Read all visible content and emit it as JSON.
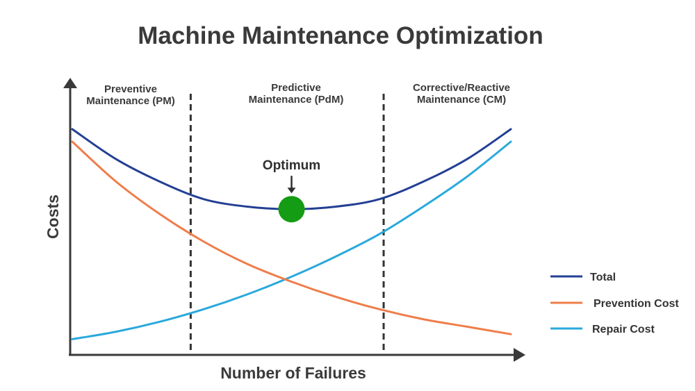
{
  "chart_data": {
    "type": "line",
    "title": "Machine Maintenance Optimization",
    "xlabel": "Number of Failures",
    "ylabel": "Costs",
    "xlim": [
      0,
      10
    ],
    "ylim": [
      0,
      10
    ],
    "grid": false,
    "legend_position": "right",
    "x": [
      0,
      1,
      2,
      3,
      4,
      5,
      6,
      7,
      8,
      9,
      10
    ],
    "series": [
      {
        "name": "Total",
        "color": "#233f94",
        "values": [
          9.0,
          7.8,
          6.9,
          6.2,
          5.9,
          5.8,
          5.9,
          6.2,
          6.9,
          7.8,
          9.0
        ]
      },
      {
        "name": "Prevention Cost",
        "color": "#ef7d4a",
        "values": [
          8.5,
          6.9,
          5.6,
          4.5,
          3.6,
          2.9,
          2.3,
          1.8,
          1.4,
          1.1,
          0.8
        ]
      },
      {
        "name": "Repair Cost",
        "color": "#29a9dc",
        "values": [
          0.6,
          0.9,
          1.3,
          1.8,
          2.4,
          3.1,
          3.9,
          4.8,
          5.9,
          7.1,
          8.5
        ]
      }
    ],
    "regions": [
      {
        "label_line1": "Preventive",
        "label_line2": "Maintenance (PM)"
      },
      {
        "label_line1": "Predictive",
        "label_line2": "Maintenance (PdM)"
      },
      {
        "label_line1": "Corrective/Reactive",
        "label_line2": "Maintenance (CM)"
      }
    ],
    "region_boundaries_x": [
      2.7,
      7.1
    ],
    "annotation": {
      "text": "Optimum",
      "x": 5,
      "y": 5.8,
      "marker_color": "#149c14"
    }
  }
}
